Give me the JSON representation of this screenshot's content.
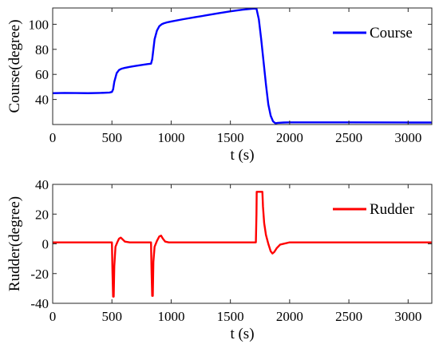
{
  "chart_data": [
    {
      "type": "line",
      "title": "",
      "xlabel": "t (s)",
      "ylabel": "Course(degree)",
      "xlim": [
        0,
        3200
      ],
      "ylim": [
        20,
        113
      ],
      "grid": false,
      "legend_position": "top-right",
      "xticks": [
        0,
        500,
        1000,
        1500,
        2000,
        2500,
        3000
      ],
      "xtick_labels": [
        "0",
        "500",
        "1000",
        "1500",
        "2000",
        "2500",
        "3000"
      ],
      "yticks": [
        40,
        60,
        80,
        100
      ],
      "ytick_labels": [
        "40",
        "60",
        "80",
        "100"
      ],
      "series": [
        {
          "name": "Course",
          "color": "#0000FF",
          "x": [
            0,
            100,
            200,
            300,
            400,
            480,
            500,
            510,
            520,
            540,
            560,
            580,
            600,
            650,
            700,
            750,
            800,
            830,
            840,
            850,
            860,
            880,
            900,
            920,
            940,
            960,
            1000,
            1100,
            1200,
            1300,
            1400,
            1500,
            1600,
            1700,
            1720,
            1740,
            1760,
            1780,
            1800,
            1820,
            1840,
            1860,
            1880,
            1900,
            1950,
            2000,
            2500,
            3000,
            3200
          ],
          "y": [
            45,
            45.2,
            45.1,
            45,
            45.2,
            45.5,
            46,
            48,
            54,
            61,
            63.5,
            64.5,
            65,
            66,
            66.8,
            67.5,
            68.2,
            68.5,
            72,
            80,
            88,
            95,
            98.5,
            100,
            100.8,
            101.4,
            102.2,
            104,
            105.6,
            107.2,
            108.8,
            110.3,
            111.6,
            112.6,
            112.5,
            104,
            88,
            70,
            52,
            36,
            27,
            22.5,
            21,
            21.3,
            21.6,
            21.7,
            21.7,
            21.6,
            21.6
          ]
        }
      ]
    },
    {
      "type": "line",
      "title": "",
      "xlabel": "t (s)",
      "ylabel": "Rudder(degree)",
      "xlim": [
        0,
        3200
      ],
      "ylim": [
        -40,
        40
      ],
      "grid": false,
      "legend_position": "top-right",
      "xticks": [
        0,
        500,
        1000,
        1500,
        2000,
        2500,
        3000
      ],
      "xtick_labels": [
        "0",
        "500",
        "1000",
        "1500",
        "2000",
        "2500",
        "3000"
      ],
      "yticks": [
        -40,
        -20,
        0,
        20,
        40
      ],
      "ytick_labels": [
        "-40",
        "-20",
        "0",
        "20",
        "40"
      ],
      "series": [
        {
          "name": "Rudder",
          "color": "#FF0000",
          "x": [
            0,
            100,
            200,
            300,
            400,
            480,
            500,
            505,
            510,
            515,
            520,
            530,
            545,
            560,
            575,
            590,
            610,
            650,
            700,
            750,
            800,
            830,
            835,
            840,
            845,
            850,
            860,
            880,
            900,
            915,
            930,
            950,
            980,
            1050,
            1200,
            1400,
            1600,
            1700,
            1715,
            1720,
            1722,
            1760,
            1770,
            1775,
            1785,
            1800,
            1820,
            1840,
            1855,
            1870,
            1890,
            1920,
            2000,
            2500,
            3000,
            3200
          ],
          "y": [
            1,
            1,
            1,
            1,
            1,
            1,
            1,
            -20,
            -35.5,
            -35.5,
            -15,
            -2,
            1,
            3.5,
            4.2,
            3,
            1.5,
            1,
            1,
            1,
            1,
            1,
            -20,
            -35,
            -35,
            -12,
            -2,
            2,
            5,
            5.5,
            3.5,
            1.5,
            1,
            1,
            1,
            1,
            1,
            1,
            1,
            20,
            35,
            35,
            35,
            25,
            14,
            6,
            0,
            -5,
            -6.5,
            -5.5,
            -3,
            -0.5,
            1,
            1,
            1,
            1
          ]
        }
      ]
    }
  ]
}
